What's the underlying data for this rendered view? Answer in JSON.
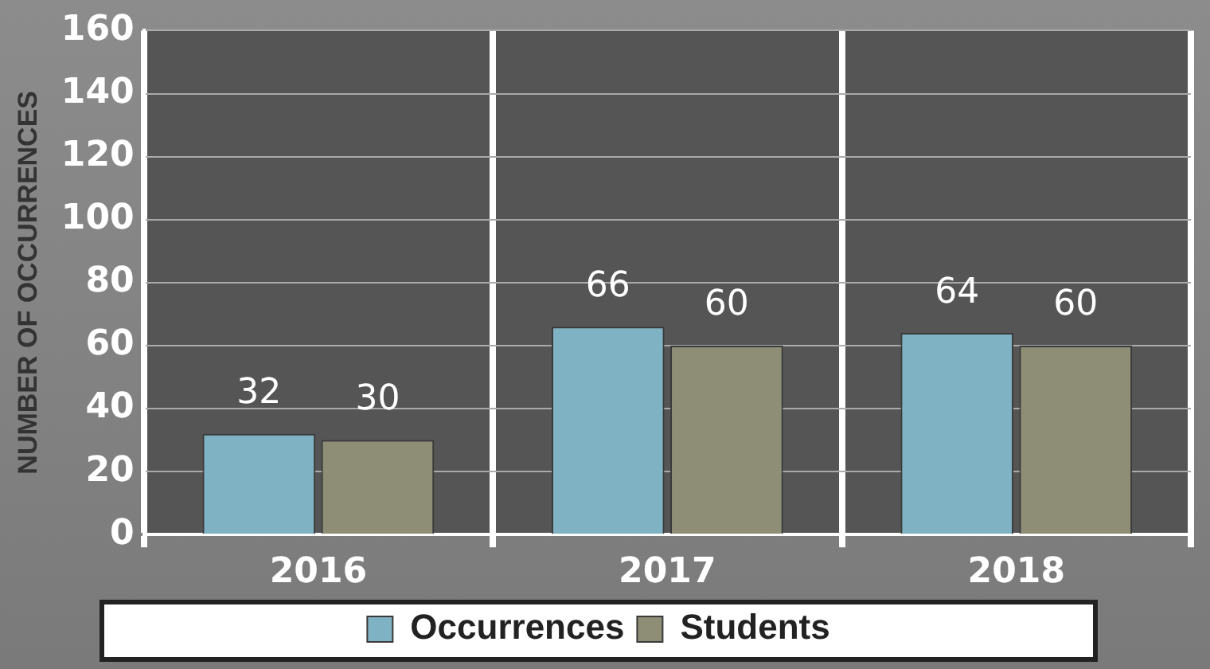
{
  "chart_data": {
    "type": "bar",
    "ylabel": "NUMBER OF OCCURRENCES",
    "categories": [
      "2016",
      "2017",
      "2018"
    ],
    "series": [
      {
        "name": "Occurrences",
        "color": "#7fb2c2",
        "values": [
          32,
          66,
          64
        ]
      },
      {
        "name": "Students",
        "color": "#8e8d76",
        "values": [
          30,
          60,
          60
        ]
      }
    ],
    "ylim": [
      0,
      160
    ],
    "yticks": [
      0,
      20,
      40,
      60,
      80,
      100,
      120,
      140,
      160
    ],
    "grid": true,
    "legend": "bottom",
    "data_labels": true
  }
}
